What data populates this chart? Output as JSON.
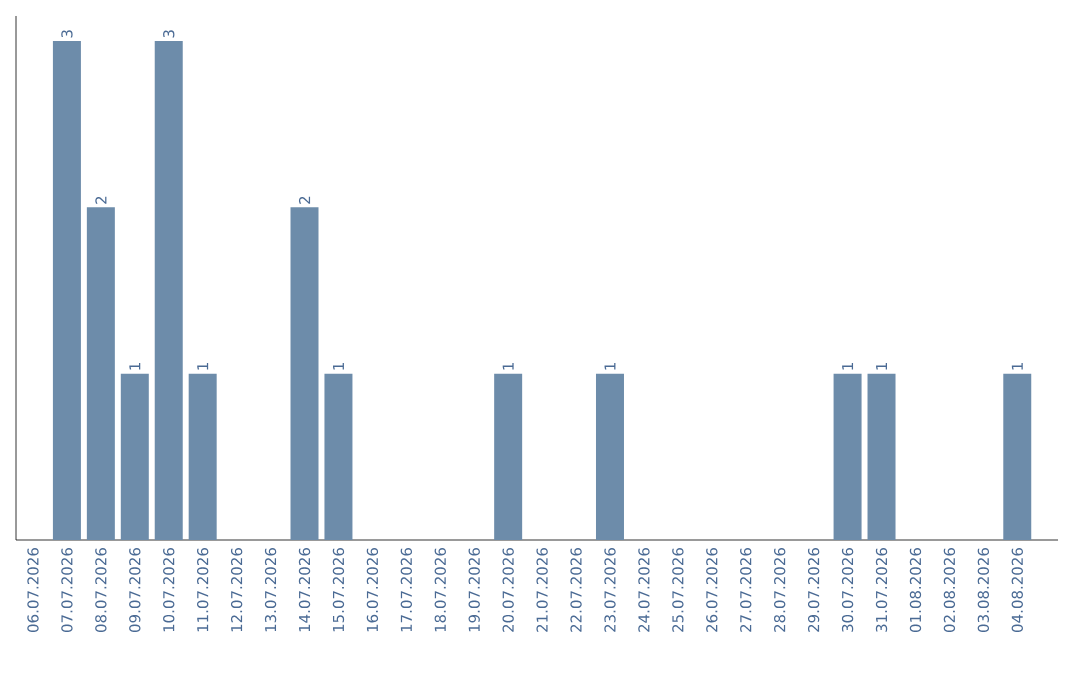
{
  "chart_data": {
    "type": "bar",
    "categories": [
      "06.07.2026",
      "07.07.2026",
      "08.07.2026",
      "09.07.2026",
      "10.07.2026",
      "11.07.2026",
      "12.07.2026",
      "13.07.2026",
      "14.07.2026",
      "15.07.2026",
      "16.07.2026",
      "17.07.2026",
      "18.07.2026",
      "19.07.2026",
      "20.07.2026",
      "21.07.2026",
      "22.07.2026",
      "23.07.2026",
      "24.07.2026",
      "25.07.2026",
      "26.07.2026",
      "27.07.2026",
      "28.07.2026",
      "29.07.2026",
      "30.07.2026",
      "31.07.2026",
      "01.08.2026",
      "02.08.2026",
      "03.08.2026",
      "04.08.2026"
    ],
    "values": [
      0,
      3,
      2,
      1,
      3,
      1,
      0,
      0,
      2,
      1,
      0,
      0,
      0,
      0,
      1,
      0,
      0,
      1,
      0,
      0,
      0,
      0,
      0,
      0,
      1,
      1,
      0,
      0,
      0,
      1
    ],
    "value_labels": [
      null,
      "3",
      "2",
      "1",
      "3",
      "1",
      null,
      null,
      "2",
      "1",
      null,
      null,
      null,
      null,
      "1",
      null,
      null,
      "1",
      null,
      null,
      null,
      null,
      null,
      null,
      "1",
      "1",
      null,
      null,
      null,
      "1"
    ],
    "color": "#6d8caa",
    "ylim": [
      0,
      3.15
    ],
    "tick_labels": "x"
  }
}
